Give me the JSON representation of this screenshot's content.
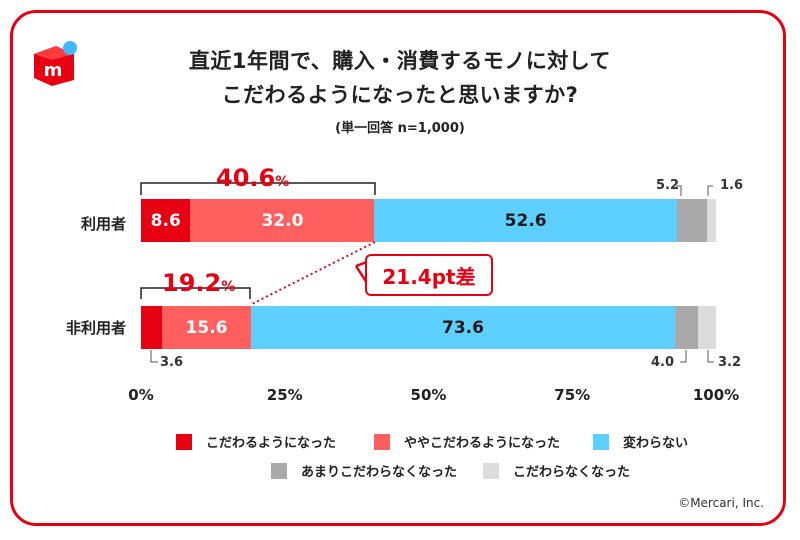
{
  "title_line1": "直近1年間で、購入・消費するモノに対して",
  "title_line2": "こだわるようになったと思いますか?",
  "subtitle": "(単一回答 n=1,000)",
  "copyright": "©Mercari, Inc.",
  "callout": "21.4pt差",
  "colors": {
    "frame": "#e60012",
    "c1": "#e60012",
    "c2": "#ff5f5f",
    "c3": "#5ccfff",
    "c4": "#a9a9a9",
    "c5": "#dcdcdc"
  },
  "chart_data": {
    "type": "bar",
    "orientation": "horizontal",
    "stacked": true,
    "categories": [
      "利用者",
      "非利用者"
    ],
    "series": [
      {
        "name": "こだわるようになった",
        "values": [
          8.6,
          3.6
        ]
      },
      {
        "name": "ややこだわるようになった",
        "values": [
          32.0,
          15.6
        ]
      },
      {
        "name": "変わらない",
        "values": [
          52.6,
          73.6
        ]
      },
      {
        "name": "あまりこだわらなくなった",
        "values": [
          5.2,
          4.0
        ]
      },
      {
        "name": "こだわらなくなった",
        "values": [
          1.6,
          3.2
        ]
      }
    ],
    "xlim": [
      0,
      100
    ],
    "xticks": [
      "0%",
      "25%",
      "50%",
      "75%",
      "100%"
    ],
    "totals": [
      {
        "value": "40.6",
        "unit": "%"
      },
      {
        "value": "19.2",
        "unit": "%"
      }
    ],
    "legend_position": "bottom"
  }
}
